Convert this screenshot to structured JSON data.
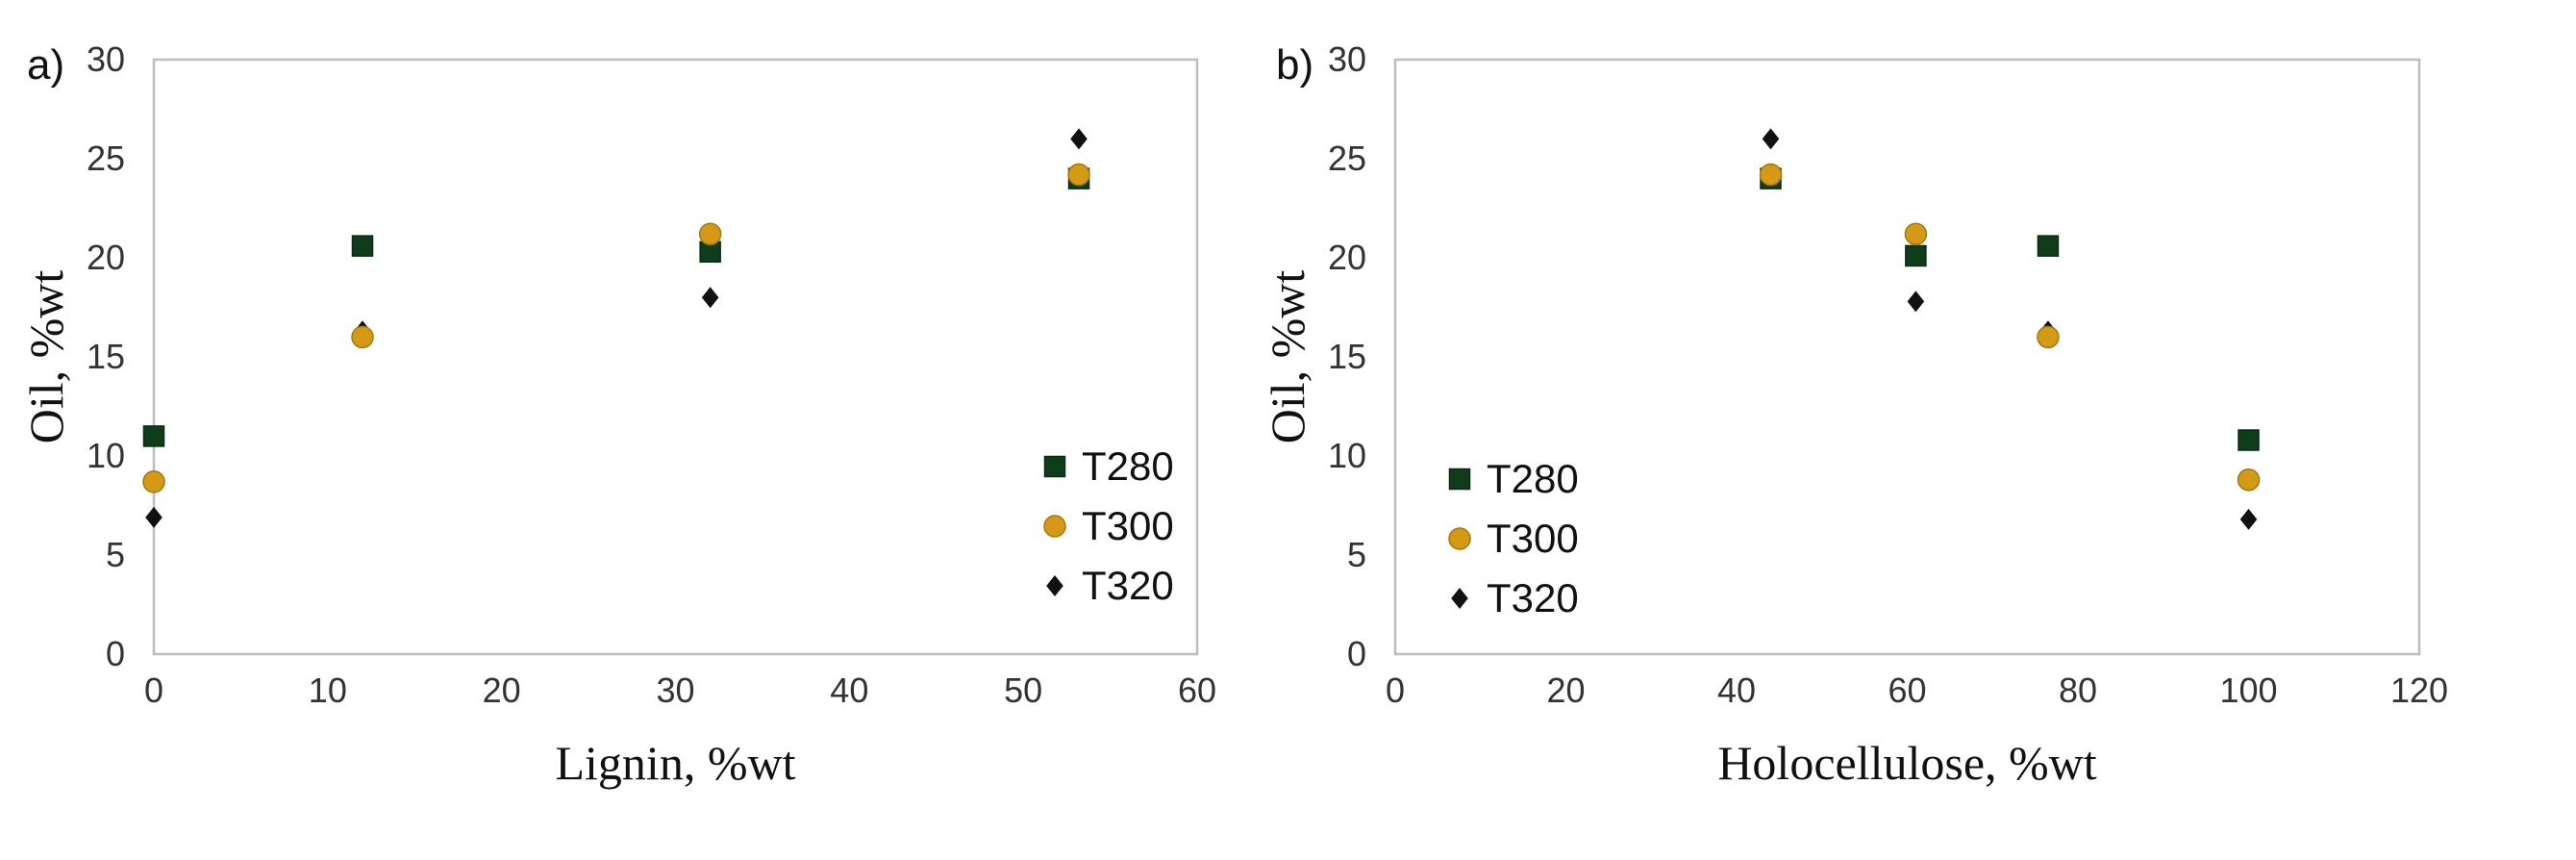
{
  "chart_data": [
    {
      "panel_label": "a)",
      "type": "scatter",
      "xlabel": "Lignin, %wt",
      "ylabel": "Oil, %wt",
      "xlim": [
        0,
        60
      ],
      "ylim": [
        0,
        30
      ],
      "xticks": [
        0,
        10,
        20,
        30,
        40,
        50,
        60
      ],
      "yticks": [
        0,
        5,
        10,
        15,
        20,
        25,
        30
      ],
      "grid": false,
      "legend_position": "right",
      "series": [
        {
          "name": "T280",
          "marker": "square",
          "color": "#0f3d1c",
          "x": [
            0,
            12,
            32,
            53.2
          ],
          "y": [
            11.0,
            20.6,
            20.3,
            24.0
          ]
        },
        {
          "name": "T300",
          "marker": "circle",
          "color": "#d49a16",
          "x": [
            0,
            12,
            32,
            53.2
          ],
          "y": [
            8.7,
            16.0,
            21.2,
            24.2
          ]
        },
        {
          "name": "T320",
          "marker": "diamond",
          "color": "#111111",
          "x": [
            0,
            12,
            32,
            53.2
          ],
          "y": [
            6.9,
            16.3,
            18.0,
            26.0
          ]
        }
      ]
    },
    {
      "panel_label": "b)",
      "type": "scatter",
      "xlabel": "Holocellulose, %wt",
      "ylabel": "Oil, %wt",
      "xlim": [
        0,
        120
      ],
      "ylim": [
        0,
        30
      ],
      "xticks": [
        0,
        20,
        40,
        60,
        80,
        100,
        120
      ],
      "yticks": [
        0,
        5,
        10,
        15,
        20,
        25,
        30
      ],
      "grid": false,
      "legend_position": "left",
      "series": [
        {
          "name": "T280",
          "marker": "square",
          "color": "#0f3d1c",
          "x": [
            44,
            61,
            76.5,
            100
          ],
          "y": [
            24.0,
            20.1,
            20.6,
            10.8
          ]
        },
        {
          "name": "T300",
          "marker": "circle",
          "color": "#d49a16",
          "x": [
            44,
            61,
            76.5,
            100
          ],
          "y": [
            24.2,
            21.2,
            16.0,
            8.8
          ]
        },
        {
          "name": "T320",
          "marker": "diamond",
          "color": "#111111",
          "x": [
            44,
            61,
            76.5,
            100
          ],
          "y": [
            26.0,
            17.8,
            16.3,
            6.8
          ]
        }
      ]
    }
  ]
}
